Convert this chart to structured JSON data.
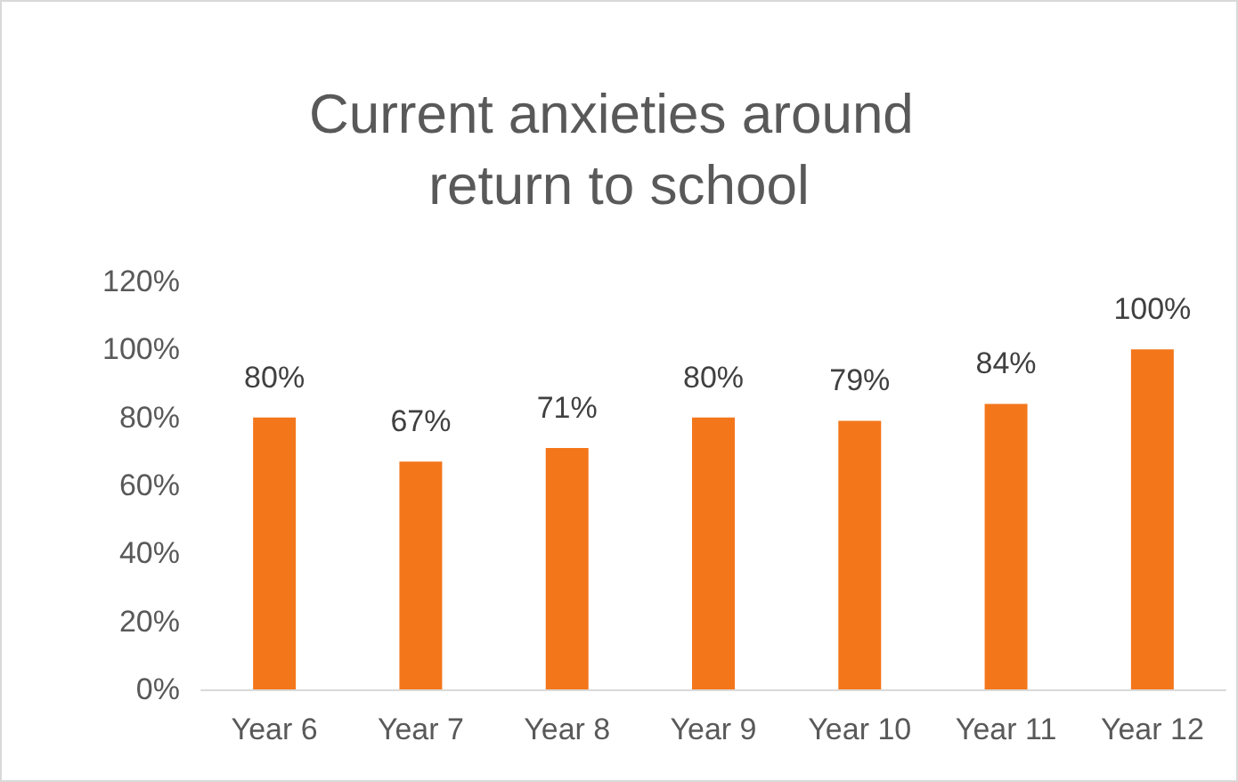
{
  "chart_data": {
    "type": "bar",
    "title": "Current anxieties around return to school",
    "categories": [
      "Year 6",
      "Year 7",
      "Year 8",
      "Year 9",
      "Year 10",
      "Year 11",
      "Year 12"
    ],
    "values": [
      80,
      67,
      71,
      80,
      79,
      84,
      100
    ],
    "value_labels": [
      "80%",
      "67%",
      "71%",
      "80%",
      "79%",
      "84%",
      "100%"
    ],
    "color": "#f4761b",
    "ylim": [
      0,
      120
    ],
    "yticks": [
      {
        "value": 0,
        "label": "0%"
      },
      {
        "value": 20,
        "label": "20%"
      },
      {
        "value": 40,
        "label": "40%"
      },
      {
        "value": 60,
        "label": "60%"
      },
      {
        "value": 80,
        "label": "80%"
      },
      {
        "value": 100,
        "label": "100%"
      },
      {
        "value": 120,
        "label": "120%"
      }
    ],
    "grid": false
  }
}
